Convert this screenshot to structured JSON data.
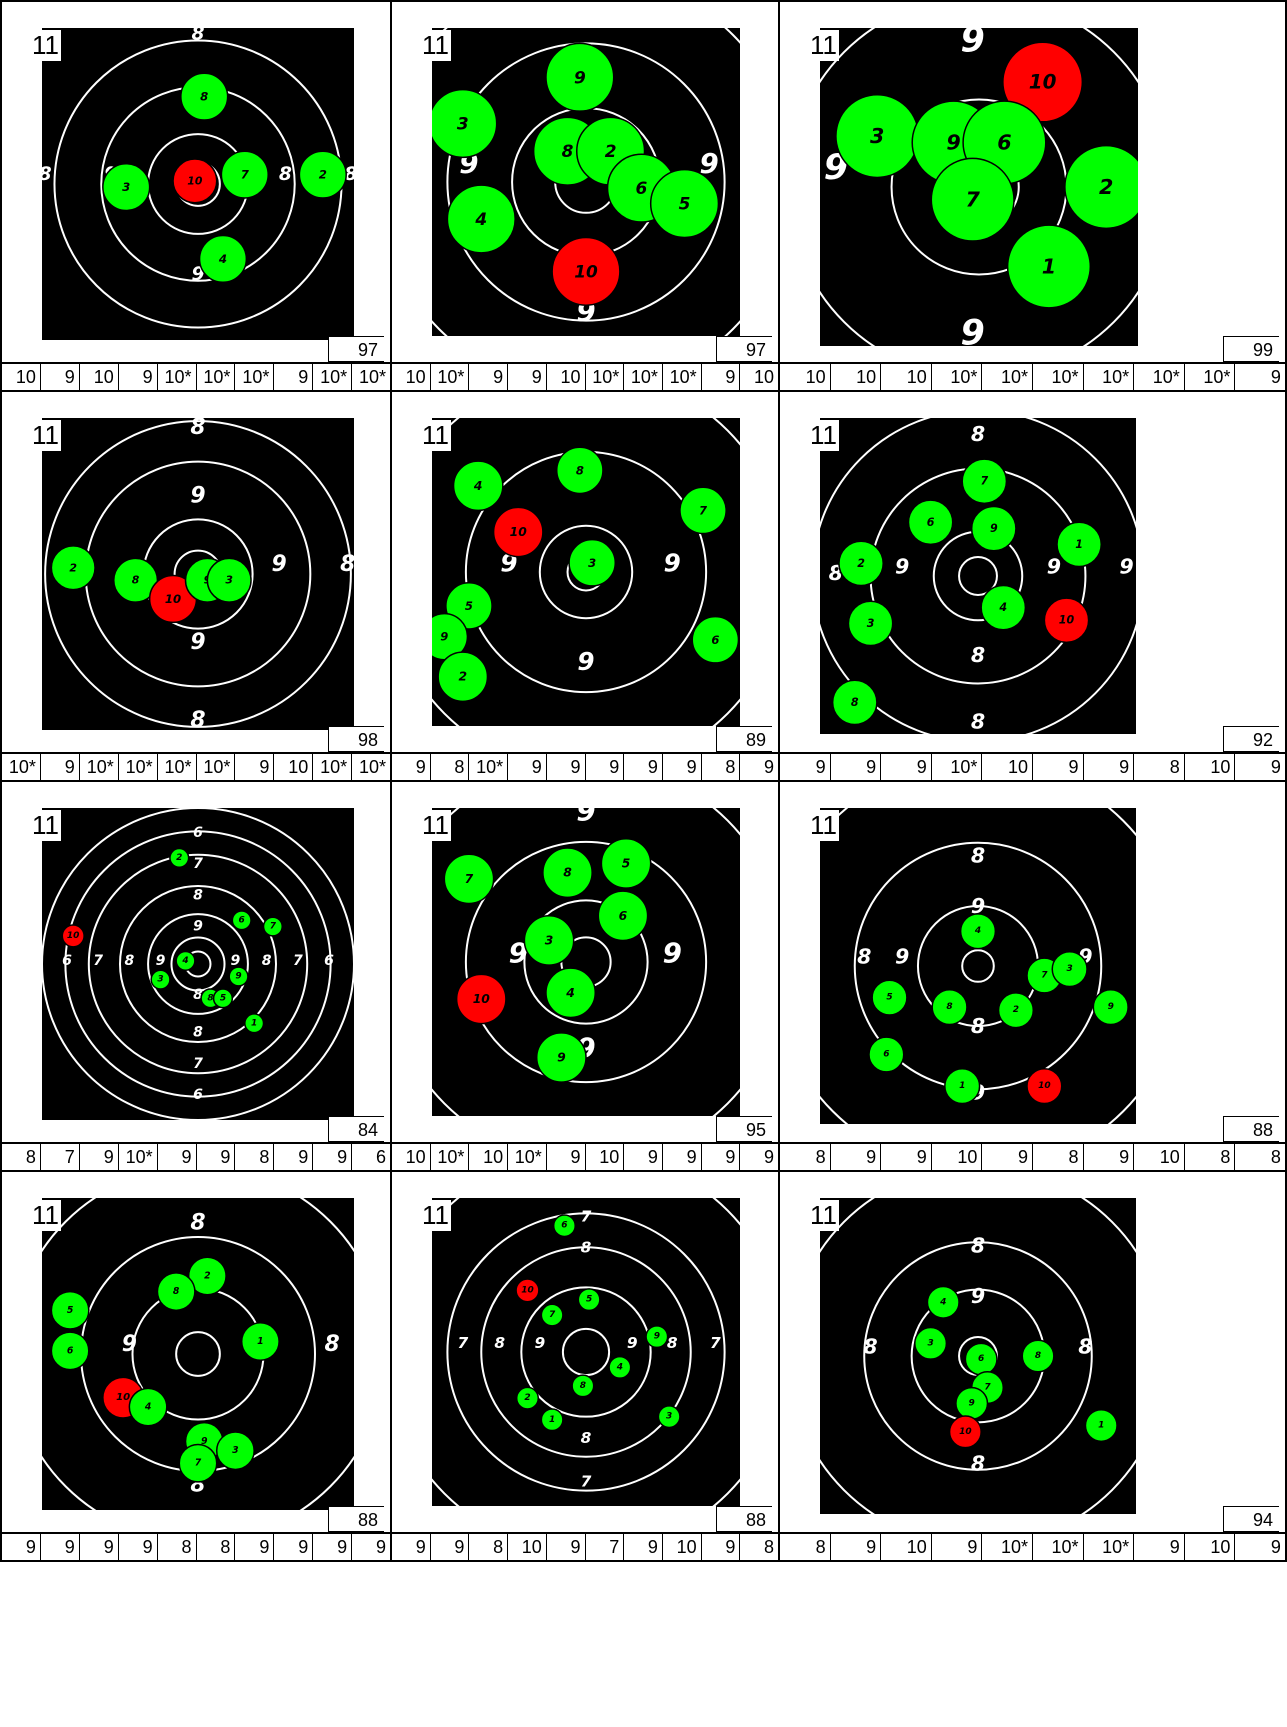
{
  "palette": {
    "target": "#000000",
    "rings": "#ffffff",
    "hit": "#00ff00",
    "last_hit": "#ff0000",
    "hole_outline": "#000000"
  },
  "targets": [
    {
      "label": "11",
      "score": "97",
      "shots": [
        "10",
        "9",
        "10",
        "9",
        "10*",
        "10*",
        "10*",
        "9",
        "10*",
        "10*"
      ],
      "ring_labels": [
        {
          "t": "8"
        },
        {
          "t": "8"
        },
        {
          "t": "8"
        },
        {
          "t": "9"
        },
        {
          "t": "9"
        },
        {
          "t": "8"
        }
      ],
      "holes": [
        {
          "n": "8"
        },
        {
          "n": "3"
        },
        {
          "n": "10"
        },
        {
          "n": "7"
        },
        {
          "n": "2"
        },
        {
          "n": "4"
        }
      ]
    },
    {
      "label": "11",
      "score": "97",
      "shots": [
        "10",
        "10*",
        "9",
        "9",
        "10",
        "10*",
        "10*",
        "10*",
        "9",
        "10"
      ],
      "ring_labels": [
        {
          "t": "9"
        },
        {
          "t": "9"
        },
        {
          "t": "9"
        }
      ],
      "holes": [
        {
          "n": "9"
        },
        {
          "n": "3"
        },
        {
          "n": "8"
        },
        {
          "n": "2"
        },
        {
          "n": "6"
        },
        {
          "n": "5"
        },
        {
          "n": "4"
        },
        {
          "n": "10"
        }
      ]
    },
    {
      "label": "11",
      "score": "99",
      "shots": [
        "10",
        "10",
        "10",
        "10*",
        "10*",
        "10*",
        "10*",
        "10*",
        "10*",
        "9"
      ],
      "ring_labels": [
        {
          "t": "9"
        },
        {
          "t": "9"
        },
        {
          "t": "9"
        }
      ],
      "holes": [
        {
          "n": "10"
        },
        {
          "n": "3"
        },
        {
          "n": "9"
        },
        {
          "n": "6"
        },
        {
          "n": "7"
        },
        {
          "n": "2"
        },
        {
          "n": "1"
        }
      ]
    },
    {
      "label": "11",
      "score": "98",
      "shots": [
        "10*",
        "9",
        "10*",
        "10*",
        "10*",
        "10*",
        "9",
        "10",
        "10*",
        "10*"
      ],
      "ring_labels": [
        {
          "t": "8"
        },
        {
          "t": "9"
        },
        {
          "t": "9"
        },
        {
          "t": "8"
        },
        {
          "t": "9"
        },
        {
          "t": "8"
        }
      ],
      "holes": [
        {
          "n": "2"
        },
        {
          "n": "8"
        },
        {
          "n": "10"
        },
        {
          "n": "9"
        },
        {
          "n": "3"
        }
      ]
    },
    {
      "label": "11",
      "score": "89",
      "shots": [
        "9",
        "8",
        "10*",
        "9",
        "9",
        "9",
        "9",
        "9",
        "8",
        "9"
      ],
      "ring_labels": [
        {
          "t": "9"
        },
        {
          "t": "9"
        },
        {
          "t": "9"
        }
      ],
      "holes": [
        {
          "n": "8"
        },
        {
          "n": "4"
        },
        {
          "n": "10"
        },
        {
          "n": "3"
        },
        {
          "n": "7"
        },
        {
          "n": "5"
        },
        {
          "n": "9"
        },
        {
          "n": "2"
        },
        {
          "n": "6"
        }
      ]
    },
    {
      "label": "11",
      "score": "92",
      "shots": [
        "9",
        "9",
        "9",
        "10*",
        "10",
        "9",
        "9",
        "8",
        "10",
        "9"
      ],
      "ring_labels": [
        {
          "t": "8"
        },
        {
          "t": "8"
        },
        {
          "t": "9"
        },
        {
          "t": "9"
        },
        {
          "t": "8"
        },
        {
          "t": "9"
        },
        {
          "t": "8"
        }
      ],
      "holes": [
        {
          "n": "7"
        },
        {
          "n": "6"
        },
        {
          "n": "9"
        },
        {
          "n": "1"
        },
        {
          "n": "2"
        },
        {
          "n": "3"
        },
        {
          "n": "4"
        },
        {
          "n": "10"
        },
        {
          "n": "8"
        }
      ]
    },
    {
      "label": "11",
      "score": "84",
      "shots": [
        "8",
        "7",
        "9",
        "10*",
        "9",
        "9",
        "8",
        "9",
        "9",
        "6"
      ],
      "ring_labels": [
        {
          "t": "6"
        },
        {
          "t": "7"
        },
        {
          "t": "8"
        },
        {
          "t": "9"
        },
        {
          "t": "6"
        },
        {
          "t": "7"
        },
        {
          "t": "8"
        },
        {
          "t": "9"
        },
        {
          "t": "9"
        },
        {
          "t": "8"
        },
        {
          "t": "7"
        },
        {
          "t": "6"
        },
        {
          "t": "8"
        },
        {
          "t": "8"
        },
        {
          "t": "7"
        },
        {
          "t": "6"
        }
      ],
      "holes": [
        {
          "n": "2"
        },
        {
          "n": "6"
        },
        {
          "n": "7"
        },
        {
          "n": "10"
        },
        {
          "n": "4"
        },
        {
          "n": "3"
        },
        {
          "n": "9"
        },
        {
          "n": "8"
        },
        {
          "n": "5"
        },
        {
          "n": "1"
        }
      ]
    },
    {
      "label": "11",
      "score": "95",
      "shots": [
        "10",
        "10*",
        "10",
        "10*",
        "9",
        "10",
        "9",
        "9",
        "9",
        "9"
      ],
      "ring_labels": [
        {
          "t": "9"
        },
        {
          "t": "9"
        },
        {
          "t": "9"
        },
        {
          "t": "9"
        }
      ],
      "holes": [
        {
          "n": "7"
        },
        {
          "n": "8"
        },
        {
          "n": "5"
        },
        {
          "n": "6"
        },
        {
          "n": "3"
        },
        {
          "n": "4"
        },
        {
          "n": "10"
        },
        {
          "n": "9"
        }
      ]
    },
    {
      "label": "11",
      "score": "88",
      "shots": [
        "8",
        "9",
        "9",
        "10",
        "9",
        "8",
        "9",
        "10",
        "8",
        "8"
      ],
      "ring_labels": [
        {
          "t": "8"
        },
        {
          "t": "9"
        },
        {
          "t": "8"
        },
        {
          "t": "9"
        },
        {
          "t": "9"
        },
        {
          "t": "8"
        },
        {
          "t": "9"
        }
      ],
      "holes": [
        {
          "n": "4"
        },
        {
          "n": "7"
        },
        {
          "n": "3"
        },
        {
          "n": "5"
        },
        {
          "n": "8"
        },
        {
          "n": "2"
        },
        {
          "n": "9"
        },
        {
          "n": "6"
        },
        {
          "n": "1"
        },
        {
          "n": "10"
        }
      ]
    },
    {
      "label": "11",
      "score": "88",
      "shots": [
        "9",
        "9",
        "9",
        "9",
        "8",
        "8",
        "9",
        "9",
        "9",
        "9"
      ],
      "ring_labels": [
        {
          "t": "8"
        },
        {
          "t": "9"
        },
        {
          "t": "8"
        },
        {
          "t": "8"
        }
      ],
      "holes": [
        {
          "n": "2"
        },
        {
          "n": "8"
        },
        {
          "n": "5"
        },
        {
          "n": "6"
        },
        {
          "n": "1"
        },
        {
          "n": "10"
        },
        {
          "n": "4"
        },
        {
          "n": "9"
        },
        {
          "n": "7"
        },
        {
          "n": "3"
        }
      ]
    },
    {
      "label": "11",
      "score": "88",
      "shots": [
        "9",
        "9",
        "8",
        "10",
        "9",
        "7",
        "9",
        "10",
        "9",
        "8"
      ],
      "ring_labels": [
        {
          "t": "7"
        },
        {
          "t": "8"
        },
        {
          "t": "7"
        },
        {
          "t": "8"
        },
        {
          "t": "9"
        },
        {
          "t": "9"
        },
        {
          "t": "8"
        },
        {
          "t": "7"
        },
        {
          "t": "9"
        },
        {
          "t": "8"
        },
        {
          "t": "7"
        }
      ],
      "holes": [
        {
          "n": "6"
        },
        {
          "n": "10"
        },
        {
          "n": "5"
        },
        {
          "n": "7"
        },
        {
          "n": "9"
        },
        {
          "n": "4"
        },
        {
          "n": "8"
        },
        {
          "n": "2"
        },
        {
          "n": "1"
        },
        {
          "n": "3"
        }
      ]
    },
    {
      "label": "11",
      "score": "94",
      "shots": [
        "8",
        "9",
        "10",
        "9",
        "10*",
        "10*",
        "10*",
        "9",
        "10",
        "9"
      ],
      "ring_labels": [
        {
          "t": "8"
        },
        {
          "t": "9"
        },
        {
          "t": "8"
        },
        {
          "t": "8"
        },
        {
          "t": "8"
        }
      ],
      "holes": [
        {
          "n": "4"
        },
        {
          "n": "3"
        },
        {
          "n": "6"
        },
        {
          "n": "8"
        },
        {
          "n": "7"
        },
        {
          "n": "9"
        },
        {
          "n": "10"
        },
        {
          "n": "1"
        }
      ]
    }
  ]
}
